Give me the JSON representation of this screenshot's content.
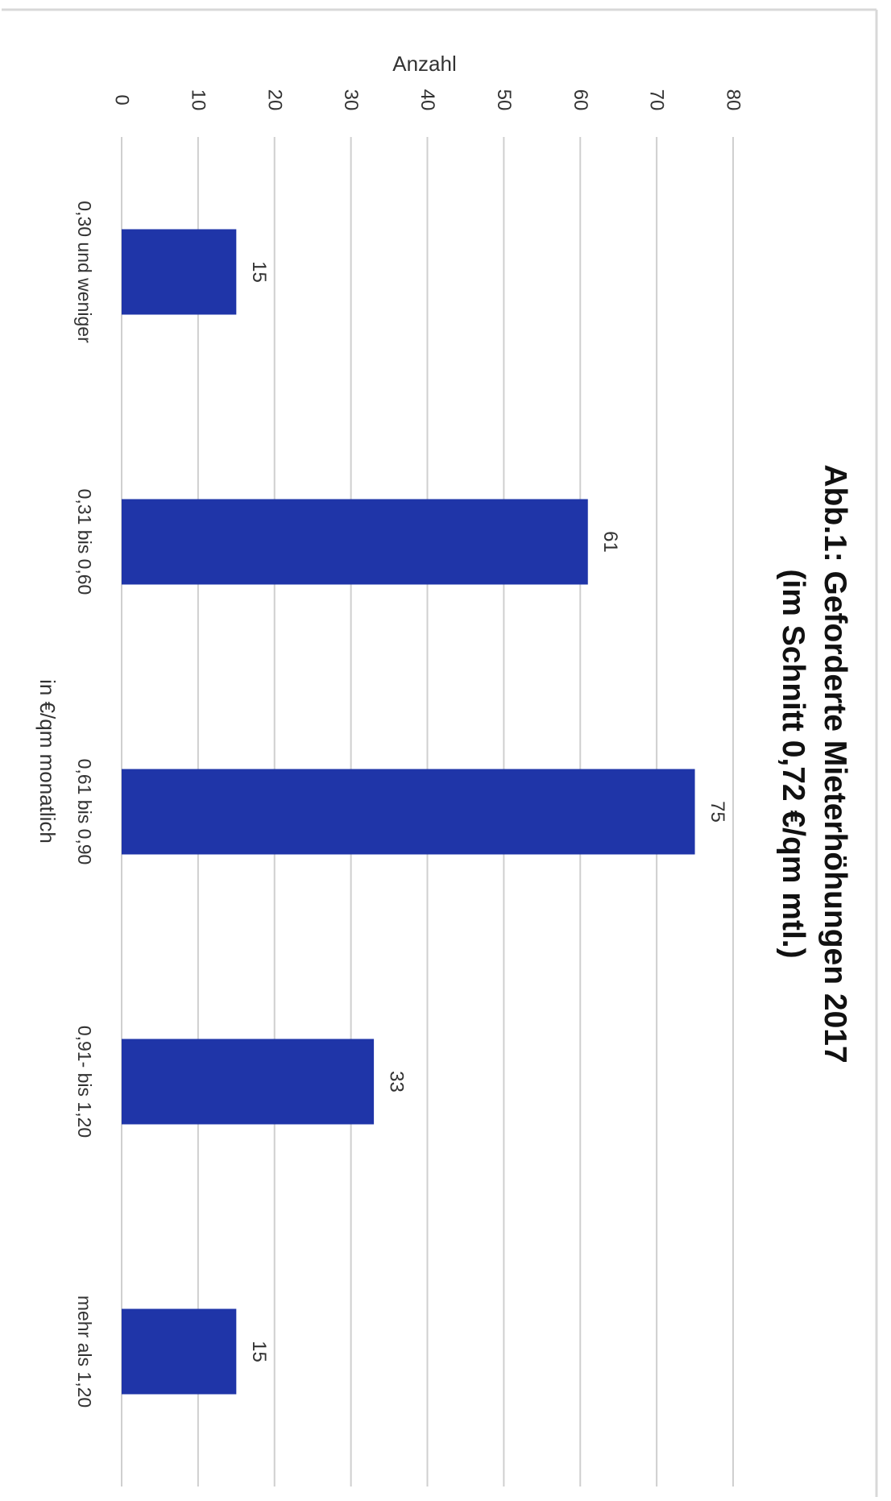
{
  "chart_data": {
    "type": "bar",
    "orientation": "vertical-bars, page rotated 90 degrees clockwise",
    "title": "Abb.1: Geforderte Mieterhöhungen 2017",
    "subtitle": "(im Schnitt 0,72 €/qm mtl.)",
    "xlabel": "in €/qm monatlich",
    "ylabel": "Anzahl",
    "categories": [
      "0,30 und weniger",
      "0,31 bis 0,60",
      "0,61 bis 0,90",
      "0,91- bis 1,20",
      "mehr als 1,20"
    ],
    "values": [
      15,
      61,
      75,
      33,
      15
    ],
    "data_labels": [
      "15",
      "61",
      "75",
      "33",
      "15"
    ],
    "ylim": [
      0,
      80
    ],
    "yticks": [
      "0",
      "10",
      "20",
      "30",
      "40",
      "50",
      "60",
      "70",
      "80"
    ],
    "grid": true,
    "legend": "none",
    "bar_color": "#1f35a8"
  }
}
